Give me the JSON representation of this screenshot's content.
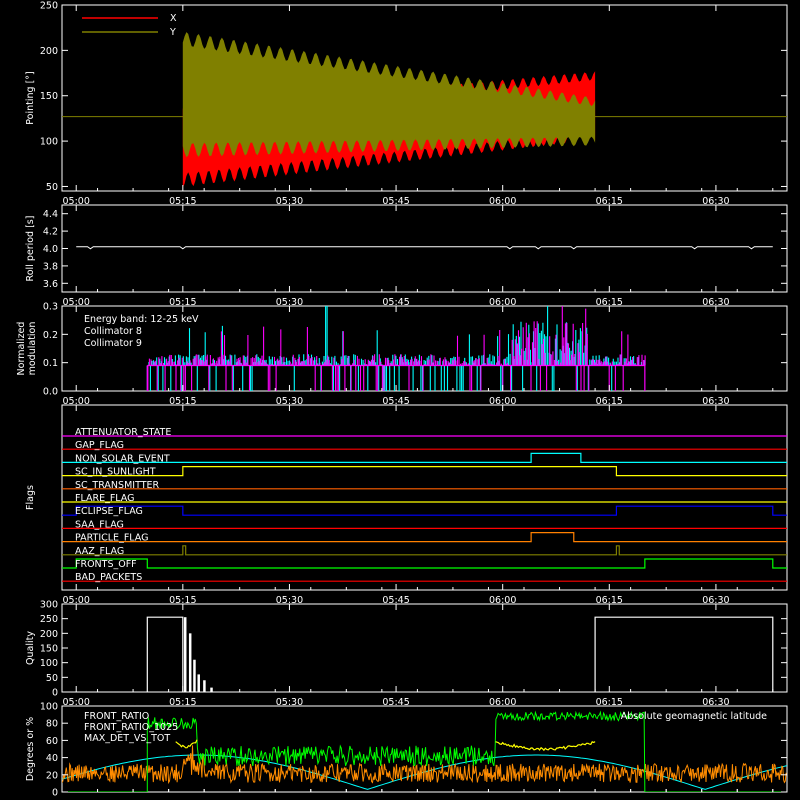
{
  "chart_data": [
    {
      "type": "area",
      "ylabel": "Pointing [°]",
      "ylim": [
        45,
        250
      ],
      "yticks": [
        50,
        100,
        150,
        200,
        250
      ],
      "xlim_minutes": [
        298,
        400
      ],
      "xticks": [
        "05:00",
        "05:15",
        "05:30",
        "05:45",
        "06:00",
        "06:15",
        "06:30"
      ],
      "reference_line": 127,
      "series": [
        {
          "name": "X",
          "color": "#ff0000",
          "start": "05:15",
          "end": "06:13",
          "band_start": [
            57,
            128
          ],
          "band_end": [
            106,
            172
          ]
        },
        {
          "name": "Y",
          "color": "#808000",
          "start": "05:15",
          "end": "06:13",
          "band_start": [
            90,
            213
          ],
          "band_end": [
            100,
            143
          ]
        }
      ]
    },
    {
      "type": "line",
      "ylabel": "Roll period [s]",
      "ylim": [
        3.5,
        4.5
      ],
      "yticks": [
        3.6,
        3.8,
        4.0,
        4.2,
        4.4
      ],
      "xticks": [
        "05:00",
        "05:15",
        "05:30",
        "05:45",
        "06:00",
        "06:15",
        "06:30"
      ],
      "series": [
        {
          "name": "",
          "color": "#ffffff",
          "value": 4.02,
          "start": "05:00",
          "end": "06:38"
        }
      ]
    },
    {
      "type": "bar",
      "ylabel": "Normalized modulation",
      "ylim": [
        0,
        0.3
      ],
      "yticks": [
        0.0,
        0.1,
        0.2,
        0.3
      ],
      "xticks": [
        "05:00",
        "05:15",
        "05:30",
        "05:45",
        "06:00",
        "06:15",
        "06:30"
      ],
      "annotation": "Energy band: 12-25 keV",
      "baseline": 0.09,
      "start": "05:10",
      "end": "06:20",
      "series": [
        {
          "name": "Collimator 8",
          "color": "#00ffff"
        },
        {
          "name": "Collimator 9",
          "color": "#ff00ff"
        }
      ]
    },
    {
      "type": "line",
      "ylabel": "Flags",
      "xticks": [
        "05:00",
        "05:15",
        "05:30",
        "05:45",
        "06:00",
        "06:15",
        "06:30"
      ],
      "flags": [
        {
          "name": "ATTENUATOR_STATE",
          "color": "#ff00ff",
          "on": []
        },
        {
          "name": "GAP_FLAG",
          "color": "#ff0000",
          "on": []
        },
        {
          "name": "NON_SOLAR_EVENT",
          "color": "#00ffff",
          "on": [
            [
              "06:04",
              "06:11"
            ]
          ]
        },
        {
          "name": "SC_IN_SUNLIGHT",
          "color": "#ffff00",
          "on": [
            [
              "05:15",
              "06:16"
            ]
          ]
        },
        {
          "name": "SC_TRANSMITTER",
          "color": "#ff6000",
          "on": []
        },
        {
          "name": "FLARE_FLAG",
          "color": "#ffff00",
          "on": []
        },
        {
          "name": "ECLIPSE_FLAG",
          "color": "#0000ff",
          "on": [
            [
              "05:00",
              "05:15"
            ],
            [
              "06:16",
              "06:38"
            ]
          ]
        },
        {
          "name": "SAA_FLAG",
          "color": "#ff0000",
          "on": []
        },
        {
          "name": "PARTICLE_FLAG",
          "color": "#ff8000",
          "on": [
            [
              "06:04",
              "06:10"
            ]
          ]
        },
        {
          "name": "AAZ_FLAG",
          "color": "#808000",
          "on": [
            [
              "05:15",
              "05:15.4"
            ],
            [
              "06:16",
              "06:16.4"
            ]
          ]
        },
        {
          "name": "FRONTS_OFF",
          "color": "#00ff00",
          "on": [
            [
              "05:00",
              "05:10"
            ],
            [
              "06:20",
              "06:38"
            ]
          ]
        },
        {
          "name": "BAD_PACKETS",
          "color": "#ff0000",
          "on": []
        }
      ]
    },
    {
      "type": "bar",
      "ylabel": "Quality",
      "ylim": [
        0,
        300
      ],
      "yticks": [
        0,
        50,
        100,
        150,
        200,
        250,
        300
      ],
      "xticks": [
        "05:00",
        "05:15",
        "05:30",
        "05:45",
        "06:00",
        "06:15",
        "06:30"
      ],
      "series": [
        {
          "name": "",
          "color": "#ffffff",
          "segments": [
            [
              "05:00",
              "05:10",
              0
            ],
            [
              "05:10",
              "05:15",
              255
            ],
            [
              "06:13",
              "06:38",
              255
            ]
          ],
          "spikes": [
            [
              "05:15.3",
              255
            ],
            [
              "05:16",
              200
            ],
            [
              "05:16.6",
              110
            ],
            [
              "05:17.2",
              60
            ],
            [
              "05:18",
              40
            ],
            [
              "05:19",
              15
            ]
          ]
        }
      ]
    },
    {
      "type": "line",
      "ylabel": "Degrees or %",
      "ylim": [
        0,
        100
      ],
      "yticks": [
        0,
        20,
        40,
        60,
        80,
        100
      ],
      "xticks": [
        "05:00",
        "05:15",
        "05:30",
        "05:45",
        "06:00",
        "06:15",
        "06:30"
      ],
      "series": [
        {
          "name": "FRONT_RATIO",
          "color": "#ffff00"
        },
        {
          "name": "FRONT_RATIO_1025",
          "color": "#00ff00"
        },
        {
          "name": "MAX_DET_VS_TOT",
          "color": "#ff8c00"
        },
        {
          "name": "Absolute geomagnetic latitude",
          "color": "#00ffff"
        }
      ]
    }
  ]
}
